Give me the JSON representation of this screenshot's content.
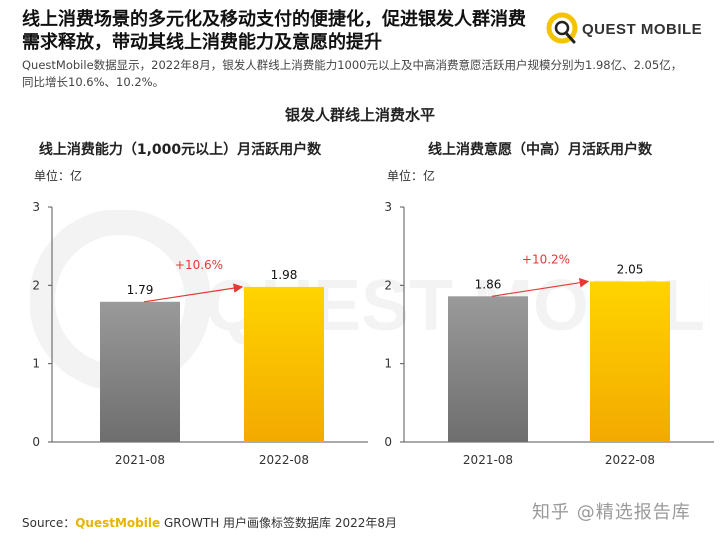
{
  "headline": {
    "line1": "线上消费场景的多元化及移动支付的便捷化，促进银发人群消费",
    "line2": "需求释放，带动其线上消费能力及意愿的提升"
  },
  "brand": {
    "name": "QUEST MOBILE",
    "accent_color": "#f5c400"
  },
  "summary": {
    "line1": "QuestMobile数据显示，2022年8月，银发人群线上消费能力1000元以上及中高消费意愿活跃用户规模分别为1.98亿、2.05亿，",
    "line2": "同比增长10.6%、10.2%。"
  },
  "main_title": "银发人群线上消费水平",
  "watermark_text": "QUEST MOBILE",
  "chart_data": [
    {
      "type": "bar",
      "title": "线上消费能力（1,000元以上）月活跃用户数",
      "unit_label": "单位：亿",
      "categories": [
        "2021-08",
        "2022-08"
      ],
      "values": [
        1.79,
        1.98
      ],
      "value_labels": [
        "1.79",
        "1.98"
      ],
      "ylim": [
        0,
        3
      ],
      "yticks": [
        0,
        1,
        2,
        3
      ],
      "growth_label": "+10.6%",
      "bar_colors": [
        "#8a8a8a",
        "#f7c300"
      ]
    },
    {
      "type": "bar",
      "title": "线上消费意愿（中高）月活跃用户数",
      "unit_label": "单位：亿",
      "categories": [
        "2021-08",
        "2022-08"
      ],
      "values": [
        1.86,
        2.05
      ],
      "value_labels": [
        "1.86",
        "2.05"
      ],
      "ylim": [
        0,
        3
      ],
      "yticks": [
        0,
        1,
        2,
        3
      ],
      "growth_label": "+10.2%",
      "bar_colors": [
        "#8a8a8a",
        "#f7c300"
      ]
    }
  ],
  "source": {
    "prefix": "Source：",
    "brand": "QuestMobile",
    "rest": " GROWTH 用户画像标签数据库 2022年8月"
  },
  "footer_watermark": "知乎 @精选报告库"
}
